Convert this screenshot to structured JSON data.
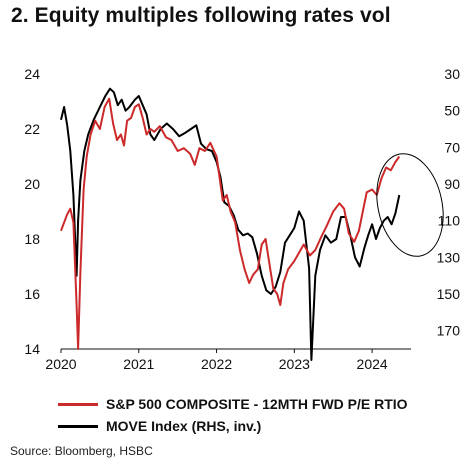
{
  "title": "2. Equity multiples following rates vol",
  "source": "Source: Bloomberg, HSBC",
  "colors": {
    "pe": "#cc2a2a",
    "move": "#000000",
    "circle": "#000000"
  },
  "chart_data": {
    "type": "line",
    "title": "2. Equity multiples following rates vol",
    "x_ticks": [
      "2020",
      "2021",
      "2022",
      "2023",
      "2024"
    ],
    "xlim": [
      2020.0,
      2024.5
    ],
    "left_axis": {
      "ticks": [
        "24",
        "22",
        "20",
        "18",
        "16",
        "14"
      ],
      "ylim": [
        14,
        24
      ]
    },
    "right_axis": {
      "ticks": [
        "30",
        "50",
        "70",
        "90",
        "110",
        "130",
        "150",
        "170"
      ],
      "ylim": [
        30,
        180
      ],
      "inverted": true
    },
    "legend_position": "bottom",
    "annotation": "ellipse circling early-2024 divergence",
    "series": [
      {
        "name": "S&P 500 COMPOSITE - 12MTH FWD P/E RTIO",
        "axis": "left",
        "x": [
          2020.0,
          2020.04,
          2020.08,
          2020.12,
          2020.16,
          2020.2,
          2020.22,
          2020.25,
          2020.29,
          2020.33,
          2020.38,
          2020.44,
          2020.5,
          2020.56,
          2020.62,
          2020.67,
          2020.72,
          2020.77,
          2020.81,
          2020.85,
          2020.9,
          2020.95,
          2021.0,
          2021.05,
          2021.1,
          2021.15,
          2021.2,
          2021.27,
          2021.35,
          2021.42,
          2021.5,
          2021.58,
          2021.66,
          2021.72,
          2021.78,
          2021.85,
          2021.92,
          2022.0,
          2022.04,
          2022.08,
          2022.13,
          2022.18,
          2022.24,
          2022.3,
          2022.36,
          2022.42,
          2022.47,
          2022.53,
          2022.58,
          2022.63,
          2022.68,
          2022.73,
          2022.78,
          2022.82,
          2022.86,
          2022.92,
          2023.0,
          2023.06,
          2023.12,
          2023.2,
          2023.27,
          2023.35,
          2023.42,
          2023.5,
          2023.58,
          2023.64,
          2023.7,
          2023.77,
          2023.83,
          2023.88,
          2023.93,
          2024.0,
          2024.06,
          2024.12,
          2024.18,
          2024.24,
          2024.3,
          2024.35
        ],
        "y": [
          18.3,
          18.6,
          18.9,
          19.1,
          18.6,
          15.6,
          14.0,
          16.8,
          19.8,
          21.0,
          21.8,
          22.3,
          22.0,
          22.8,
          23.1,
          22.2,
          21.6,
          21.8,
          21.4,
          22.3,
          22.4,
          22.8,
          22.9,
          22.4,
          21.8,
          22.0,
          21.9,
          22.1,
          21.7,
          21.6,
          21.2,
          21.3,
          21.1,
          20.7,
          21.3,
          21.2,
          21.5,
          21.0,
          20.2,
          19.4,
          19.6,
          19.0,
          18.6,
          17.6,
          16.9,
          16.4,
          16.7,
          16.9,
          17.8,
          18.0,
          17.1,
          16.2,
          16.0,
          15.6,
          16.4,
          16.9,
          17.2,
          17.5,
          17.8,
          17.4,
          17.6,
          18.1,
          18.5,
          19.0,
          19.3,
          19.1,
          18.2,
          17.9,
          18.3,
          19.0,
          19.7,
          19.8,
          19.6,
          20.2,
          20.6,
          20.5,
          20.8,
          21.0
        ]
      },
      {
        "name": "MOVE Index (RHS, inv.)",
        "axis": "right",
        "x": [
          2020.0,
          2020.04,
          2020.08,
          2020.12,
          2020.16,
          2020.2,
          2020.22,
          2020.25,
          2020.3,
          2020.35,
          2020.42,
          2020.5,
          2020.57,
          2020.63,
          2020.68,
          2020.73,
          2020.78,
          2020.83,
          2020.88,
          2020.95,
          2021.0,
          2021.05,
          2021.1,
          2021.15,
          2021.2,
          2021.28,
          2021.36,
          2021.44,
          2021.52,
          2021.6,
          2021.67,
          2021.74,
          2021.8,
          2021.87,
          2021.94,
          2022.0,
          2022.05,
          2022.1,
          2022.16,
          2022.22,
          2022.28,
          2022.34,
          2022.4,
          2022.46,
          2022.52,
          2022.58,
          2022.64,
          2022.7,
          2022.76,
          2022.82,
          2022.88,
          2022.94,
          2023.0,
          2023.06,
          2023.12,
          2023.16,
          2023.19,
          2023.22,
          2023.27,
          2023.33,
          2023.4,
          2023.47,
          2023.54,
          2023.6,
          2023.66,
          2023.72,
          2023.78,
          2023.84,
          2023.9,
          2023.95,
          2024.0,
          2024.05,
          2024.1,
          2024.15,
          2024.2,
          2024.25,
          2024.3,
          2024.35
        ],
        "y": [
          55,
          48,
          58,
          72,
          96,
          140,
          110,
          88,
          72,
          63,
          55,
          48,
          42,
          38,
          40,
          47,
          44,
          50,
          48,
          44,
          42,
          47,
          52,
          63,
          66,
          60,
          57,
          60,
          64,
          62,
          60,
          58,
          68,
          71,
          72,
          78,
          86,
          100,
          102,
          107,
          115,
          118,
          117,
          119,
          128,
          140,
          148,
          150,
          146,
          138,
          122,
          118,
          114,
          105,
          110,
          125,
          136,
          186,
          140,
          126,
          118,
          122,
          120,
          108,
          108,
          118,
          130,
          135,
          125,
          118,
          112,
          120,
          114,
          110,
          108,
          112,
          106,
          96
        ]
      }
    ]
  },
  "legend": [
    {
      "label": "S&P 500 COMPOSITE - 12MTH FWD P/E RTIO",
      "color": "#cc2a2a"
    },
    {
      "label": "MOVE Index (RHS, inv.)",
      "color": "#000000"
    }
  ]
}
